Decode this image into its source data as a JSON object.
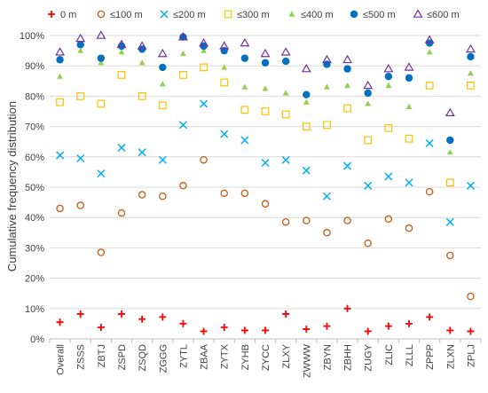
{
  "chart_data": {
    "type": "scatter",
    "title": "",
    "xlabel": "",
    "ylabel": "Cumulative frequency distribution",
    "ylim": [
      0,
      100
    ],
    "yticks": [
      "0%",
      "10%",
      "20%",
      "30%",
      "40%",
      "50%",
      "60%",
      "70%",
      "80%",
      "90%",
      "100%"
    ],
    "grid": "horizontal",
    "legend_position": "top",
    "categories": [
      "Overall",
      "ZSSS",
      "ZBTJ",
      "ZSPD",
      "ZSQD",
      "ZGGG",
      "ZYTL",
      "ZBAA",
      "ZYTX",
      "ZYHB",
      "ZYCC",
      "ZLXY",
      "ZWWW",
      "ZBYN",
      "ZBHH",
      "ZUGY",
      "ZLIC",
      "ZLLL",
      "ZPPP",
      "ZLXN",
      "ZPLJ"
    ],
    "series": [
      {
        "name": "0 m",
        "marker": "plus",
        "color": "#ff0000",
        "values": [
          5.5,
          8.2,
          3.8,
          8.2,
          6.5,
          7.2,
          5.0,
          2.5,
          3.8,
          2.8,
          2.8,
          8.2,
          3.2,
          4.2,
          10.0,
          2.5,
          4.2,
          5.0,
          7.2,
          2.8,
          2.5
        ]
      },
      {
        "name": "≤100 m",
        "marker": "circle-open",
        "color": "#c55a11",
        "values": [
          43.0,
          44.0,
          28.5,
          41.5,
          47.5,
          47.0,
          50.5,
          59.0,
          48.0,
          48.0,
          44.5,
          38.5,
          39.0,
          35.0,
          39.0,
          31.5,
          39.5,
          36.5,
          48.5,
          27.5,
          14.0
        ]
      },
      {
        "name": "≤200 m",
        "marker": "x",
        "color": "#00b0f0",
        "values": [
          60.5,
          59.5,
          54.5,
          63.0,
          61.5,
          59.0,
          70.5,
          77.5,
          67.5,
          65.5,
          58.0,
          59.0,
          55.5,
          47.0,
          57.0,
          50.5,
          53.5,
          51.5,
          64.5,
          38.5,
          50.5
        ]
      },
      {
        "name": "≤300 m",
        "marker": "square-open",
        "color": "#ffc000",
        "values": [
          78.0,
          80.0,
          77.5,
          87.0,
          80.0,
          77.0,
          87.0,
          89.5,
          84.5,
          75.5,
          75.0,
          74.0,
          70.0,
          70.5,
          76.0,
          65.5,
          69.5,
          66.0,
          83.5,
          51.5,
          83.5
        ]
      },
      {
        "name": "≤400 m",
        "marker": "triangle",
        "color": "#92d050",
        "values": [
          86.5,
          95.0,
          91.0,
          94.5,
          91.0,
          84.0,
          94.0,
          95.0,
          89.5,
          83.0,
          82.5,
          81.0,
          78.0,
          83.0,
          83.5,
          77.5,
          83.5,
          76.5,
          94.5,
          61.5,
          87.5
        ]
      },
      {
        "name": "≤500 m",
        "marker": "circle",
        "color": "#0070c0",
        "values": [
          92.0,
          97.0,
          92.5,
          96.5,
          95.5,
          89.5,
          99.5,
          96.5,
          95.0,
          92.5,
          91.0,
          91.5,
          80.5,
          90.5,
          89.0,
          81.0,
          86.5,
          86.0,
          97.5,
          65.5,
          93.0
        ]
      },
      {
        "name": "≤600 m",
        "marker": "triangle-open",
        "color": "#7030a0",
        "values": [
          94.5,
          99.0,
          100.0,
          97.0,
          96.5,
          94.0,
          99.5,
          97.5,
          96.5,
          97.5,
          94.0,
          94.5,
          89.0,
          92.0,
          92.0,
          83.5,
          89.0,
          89.5,
          98.5,
          74.5,
          95.5
        ]
      }
    ]
  }
}
